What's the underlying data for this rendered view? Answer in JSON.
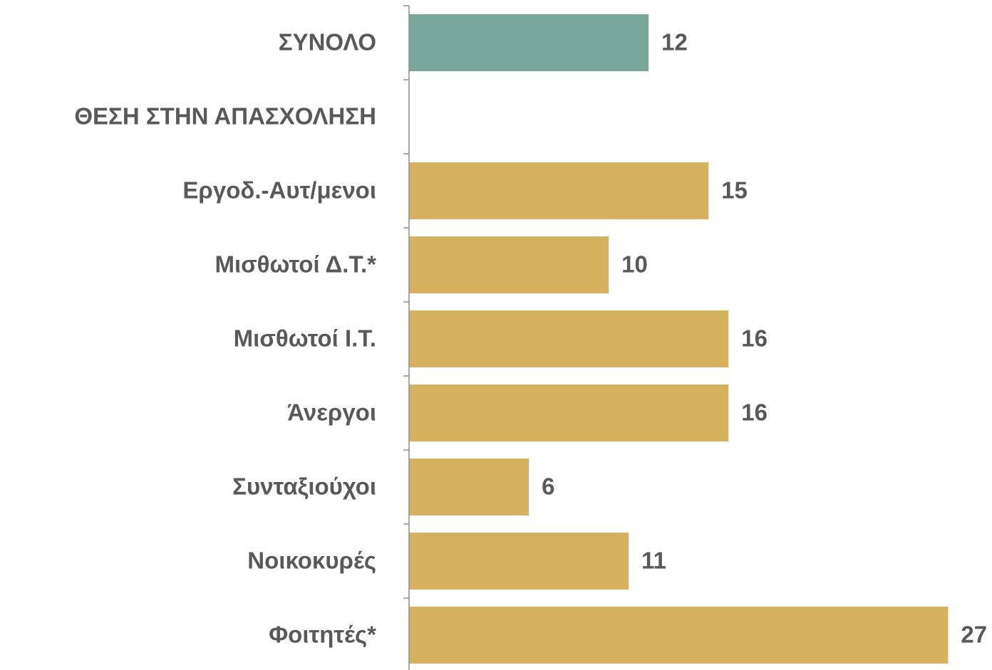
{
  "chart_data": {
    "type": "barh",
    "categories": [
      "ΣΥΝΟΛΟ",
      "ΘΕΣΗ ΣΤΗΝ ΑΠΑΣΧΟΛΗΣΗ",
      "Εργοδ.-Αυτ/μενοι",
      "Μισθωτοί Δ.Τ.*",
      "Μισθωτοί Ι.Τ.",
      "Άνεργοι",
      "Συνταξιούχοι",
      "Νοικοκυρές",
      "Φοιτητές*"
    ],
    "values": [
      12,
      null,
      15,
      10,
      16,
      16,
      6,
      11,
      27
    ],
    "colors": [
      "#7aa79b",
      null,
      "#d7b25e",
      "#d7b25e",
      "#d7b25e",
      "#d7b25e",
      "#d7b25e",
      "#d7b25e",
      "#d7b25e"
    ],
    "xlim": [
      0,
      29.2
    ]
  }
}
